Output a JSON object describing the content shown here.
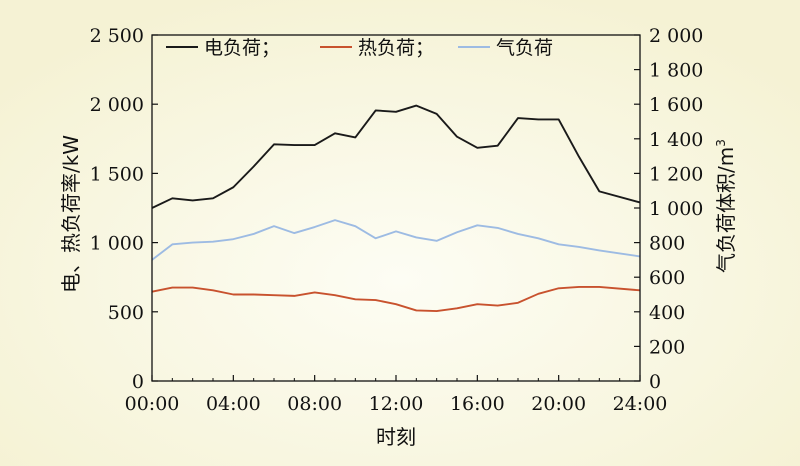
{
  "chart_data": {
    "type": "line",
    "xlabel": "时刻",
    "ylabel_left": "电、热负荷率/kW",
    "ylabel_right_main": "气负荷体积/m",
    "ylabel_right_sup": "3",
    "x_ticks": [
      "00:00",
      "04:00",
      "08:00",
      "12:00",
      "16:00",
      "20:00",
      "24:00"
    ],
    "x_range": [
      0,
      24
    ],
    "y_left_range": [
      0,
      2500
    ],
    "y_left_ticks": [
      {
        "value": 0,
        "label": "0"
      },
      {
        "value": 500,
        "label": "500"
      },
      {
        "value": 1000,
        "label": "1 000"
      },
      {
        "value": 1500,
        "label": "1 500"
      },
      {
        "value": 2000,
        "label": "2 000"
      },
      {
        "value": 2500,
        "label": "2 500"
      }
    ],
    "y_right_range": [
      0,
      2000
    ],
    "y_right_ticks": [
      {
        "value": 0,
        "label": "0"
      },
      {
        "value": 200,
        "label": "200"
      },
      {
        "value": 400,
        "label": "400"
      },
      {
        "value": 600,
        "label": "600"
      },
      {
        "value": 800,
        "label": "800"
      },
      {
        "value": 1000,
        "label": "1 000"
      },
      {
        "value": 1200,
        "label": "1 200"
      },
      {
        "value": 1400,
        "label": "1 400"
      },
      {
        "value": 1600,
        "label": "1 600"
      },
      {
        "value": 1800,
        "label": "1 800"
      },
      {
        "value": 2000,
        "label": "2 000"
      }
    ],
    "legend_placement": "top",
    "series": [
      {
        "name": "电负荷；",
        "axis": "left",
        "color": "#1a1a1a",
        "points": [
          [
            0,
            1250
          ],
          [
            1,
            1320
          ],
          [
            2,
            1305
          ],
          [
            3,
            1320
          ],
          [
            4,
            1400
          ],
          [
            5,
            1550
          ],
          [
            6,
            1710
          ],
          [
            7,
            1705
          ],
          [
            8,
            1705
          ],
          [
            9,
            1790
          ],
          [
            10,
            1760
          ],
          [
            11,
            1955
          ],
          [
            12,
            1945
          ],
          [
            13,
            1990
          ],
          [
            14,
            1930
          ],
          [
            15,
            1765
          ],
          [
            16,
            1685
          ],
          [
            17,
            1700
          ],
          [
            18,
            1900
          ],
          [
            19,
            1890
          ],
          [
            20,
            1890
          ],
          [
            21,
            1620
          ],
          [
            22,
            1370
          ],
          [
            24,
            1290
          ]
        ]
      },
      {
        "name": "热负荷；",
        "axis": "left",
        "color": "#c8522e",
        "points": [
          [
            0,
            645
          ],
          [
            1,
            675
          ],
          [
            2,
            675
          ],
          [
            3,
            655
          ],
          [
            4,
            625
          ],
          [
            5,
            625
          ],
          [
            6,
            620
          ],
          [
            7,
            615
          ],
          [
            8,
            640
          ],
          [
            9,
            620
          ],
          [
            10,
            590
          ],
          [
            11,
            585
          ],
          [
            12,
            555
          ],
          [
            13,
            510
          ],
          [
            14,
            505
          ],
          [
            15,
            525
          ],
          [
            16,
            555
          ],
          [
            17,
            545
          ],
          [
            18,
            565
          ],
          [
            19,
            630
          ],
          [
            20,
            670
          ],
          [
            21,
            680
          ],
          [
            22,
            680
          ],
          [
            24,
            655
          ]
        ]
      },
      {
        "name": "气负荷",
        "axis": "right",
        "color": "#9dbbe3",
        "points": [
          [
            0,
            700
          ],
          [
            1,
            790
          ],
          [
            2,
            800
          ],
          [
            3,
            805
          ],
          [
            4,
            820
          ],
          [
            5,
            850
          ],
          [
            6,
            895
          ],
          [
            7,
            855
          ],
          [
            8,
            890
          ],
          [
            9,
            930
          ],
          [
            10,
            895
          ],
          [
            11,
            825
          ],
          [
            12,
            865
          ],
          [
            13,
            830
          ],
          [
            14,
            810
          ],
          [
            15,
            860
          ],
          [
            16,
            900
          ],
          [
            17,
            885
          ],
          [
            18,
            850
          ],
          [
            19,
            825
          ],
          [
            20,
            790
          ],
          [
            21,
            775
          ],
          [
            22,
            755
          ],
          [
            24,
            720
          ]
        ]
      }
    ]
  }
}
